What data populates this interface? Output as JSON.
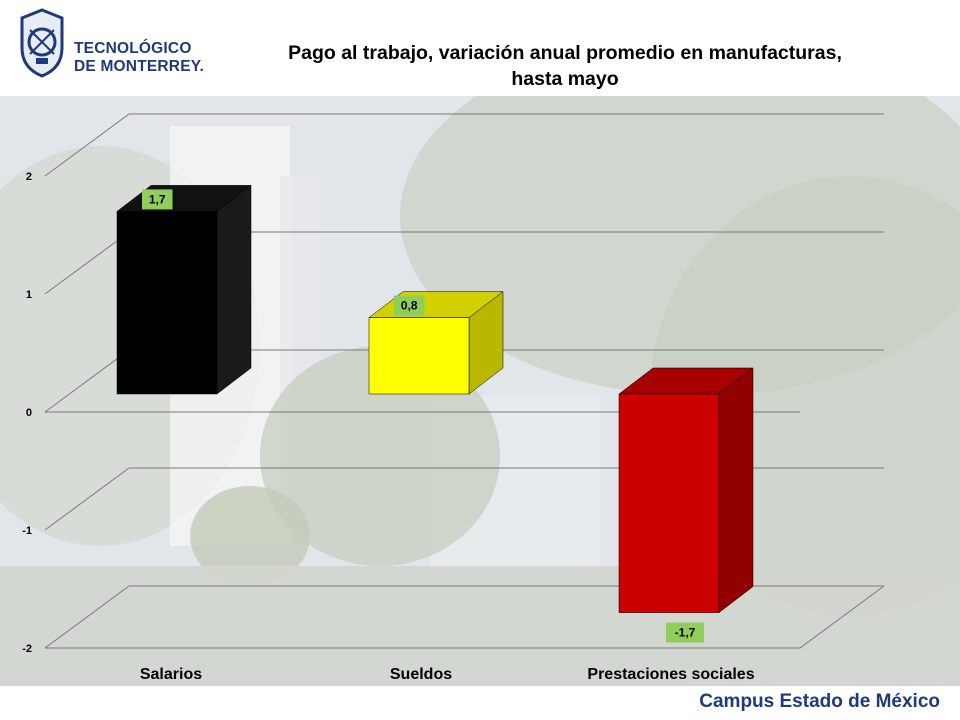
{
  "header": {
    "logo_line1": "TECNOLÓGICO",
    "logo_line2": "DE MONTERREY."
  },
  "chart_data": {
    "type": "bar",
    "title": "Pago al trabajo, variación anual promedio  en manufacturas, hasta mayo",
    "title_lines": [
      "Pago al trabajo, variación anual promedio  en manufacturas,",
      "hasta mayo"
    ],
    "categories": [
      "Salarios",
      "Sueldos",
      "Prestaciones sociales"
    ],
    "values": [
      1.7,
      0.8,
      -1.7
    ],
    "data_labels": [
      "1,7",
      "0,8",
      "-1,7"
    ],
    "bar_colors": [
      "#000000",
      "#ffff00",
      "#cc0000"
    ],
    "label_bg": "#8fce5a",
    "yticks": [
      "2",
      "1",
      "0",
      "-1",
      "-2"
    ],
    "ytick_values": [
      2,
      1,
      0,
      -1,
      -2
    ],
    "ylim": [
      -2,
      2
    ],
    "grid": true,
    "legend": "none",
    "three_d": true
  },
  "footer": {
    "campus": "Campus Estado de México"
  },
  "colors": {
    "brand": "#1f3a7a"
  }
}
